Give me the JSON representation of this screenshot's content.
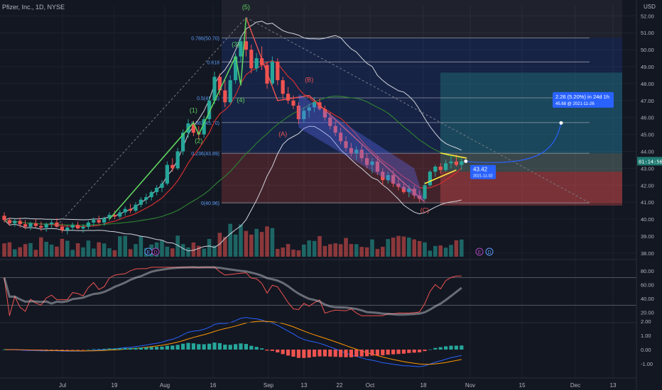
{
  "header": {
    "title": "Pfizer, Inc., 1D, NYSE",
    "currency": "USD"
  },
  "colors": {
    "bg": "#131722",
    "up": "#26a69a",
    "down": "#ef5350",
    "grid": "#1e222d",
    "axis_text": "#b2b5be",
    "fib_line": "#5b9cf6",
    "wave_green": "#5fd35f",
    "label_blue": "#2962ff",
    "price_tag": "#1f7a72"
  },
  "chart_data": {
    "type": "candlestick",
    "title": "Pfizer, Inc., 1D, NYSE",
    "x_axis": {
      "tick_labels": [
        "Jul",
        "19",
        "Aug",
        "16",
        "Sep",
        "13",
        "22",
        "Oct",
        "18",
        "Nov",
        "15",
        "Dec",
        "13"
      ]
    },
    "y_axis": {
      "range": [
        37.7,
        52.6
      ],
      "tick_labels": [
        "52.00",
        "51.00",
        "50.00",
        "49.00",
        "48.00",
        "47.00",
        "46.00",
        "45.00",
        "44.00",
        "43.00",
        "42.00",
        "41.00",
        "40.00",
        "39.00",
        "38.00"
      ]
    },
    "last_price": {
      "value": "43.42",
      "time_left": "01:14:56"
    },
    "candles": [
      {
        "o": 40.2,
        "h": 40.4,
        "l": 39.8,
        "c": 39.95
      },
      {
        "o": 39.95,
        "h": 40.1,
        "l": 39.6,
        "c": 39.75
      },
      {
        "o": 39.75,
        "h": 40.0,
        "l": 39.55,
        "c": 39.9
      },
      {
        "o": 39.9,
        "h": 40.1,
        "l": 39.5,
        "c": 39.7
      },
      {
        "o": 39.7,
        "h": 39.95,
        "l": 39.4,
        "c": 39.55
      },
      {
        "o": 39.55,
        "h": 39.85,
        "l": 39.35,
        "c": 39.75
      },
      {
        "o": 39.75,
        "h": 40.0,
        "l": 39.5,
        "c": 39.6
      },
      {
        "o": 39.6,
        "h": 39.85,
        "l": 39.3,
        "c": 39.5
      },
      {
        "o": 39.5,
        "h": 39.8,
        "l": 39.25,
        "c": 39.7
      },
      {
        "o": 39.7,
        "h": 40.0,
        "l": 39.5,
        "c": 39.8
      },
      {
        "o": 39.8,
        "h": 40.05,
        "l": 39.5,
        "c": 39.55
      },
      {
        "o": 39.55,
        "h": 39.75,
        "l": 39.2,
        "c": 39.35
      },
      {
        "o": 39.35,
        "h": 39.65,
        "l": 39.1,
        "c": 39.5
      },
      {
        "o": 39.5,
        "h": 39.8,
        "l": 39.3,
        "c": 39.65
      },
      {
        "o": 39.65,
        "h": 39.85,
        "l": 39.4,
        "c": 39.45
      },
      {
        "o": 39.45,
        "h": 39.7,
        "l": 39.2,
        "c": 39.55
      },
      {
        "o": 39.55,
        "h": 39.9,
        "l": 39.4,
        "c": 39.8
      },
      {
        "o": 39.8,
        "h": 40.1,
        "l": 39.6,
        "c": 39.95
      },
      {
        "o": 39.95,
        "h": 40.2,
        "l": 39.7,
        "c": 39.8
      },
      {
        "o": 39.8,
        "h": 40.15,
        "l": 39.6,
        "c": 40.05
      },
      {
        "o": 40.05,
        "h": 40.4,
        "l": 39.9,
        "c": 40.25
      },
      {
        "o": 40.25,
        "h": 40.5,
        "l": 40.0,
        "c": 40.15
      },
      {
        "o": 40.15,
        "h": 40.55,
        "l": 40.0,
        "c": 40.4
      },
      {
        "o": 40.4,
        "h": 40.75,
        "l": 40.2,
        "c": 40.6
      },
      {
        "o": 40.6,
        "h": 40.9,
        "l": 40.35,
        "c": 40.5
      },
      {
        "o": 40.5,
        "h": 41.0,
        "l": 40.4,
        "c": 40.85
      },
      {
        "o": 40.85,
        "h": 41.3,
        "l": 40.7,
        "c": 41.15
      },
      {
        "o": 41.15,
        "h": 41.5,
        "l": 40.9,
        "c": 41.3
      },
      {
        "o": 41.3,
        "h": 41.7,
        "l": 41.1,
        "c": 41.6
      },
      {
        "o": 41.6,
        "h": 42.0,
        "l": 41.4,
        "c": 41.85
      },
      {
        "o": 41.85,
        "h": 42.3,
        "l": 41.6,
        "c": 42.1
      },
      {
        "o": 42.1,
        "h": 43.4,
        "l": 42.0,
        "c": 43.2
      },
      {
        "o": 43.2,
        "h": 43.6,
        "l": 42.8,
        "c": 43.0
      },
      {
        "o": 43.0,
        "h": 44.2,
        "l": 42.9,
        "c": 44.0
      },
      {
        "o": 44.0,
        "h": 45.3,
        "l": 43.8,
        "c": 45.1
      },
      {
        "o": 45.1,
        "h": 45.9,
        "l": 44.8,
        "c": 45.65
      },
      {
        "o": 45.65,
        "h": 45.8,
        "l": 44.9,
        "c": 45.1
      },
      {
        "o": 45.1,
        "h": 45.5,
        "l": 44.7,
        "c": 45.0
      },
      {
        "o": 45.0,
        "h": 46.1,
        "l": 44.8,
        "c": 45.9
      },
      {
        "o": 45.9,
        "h": 47.2,
        "l": 45.7,
        "c": 47.0
      },
      {
        "o": 47.0,
        "h": 48.7,
        "l": 46.8,
        "c": 48.4
      },
      {
        "o": 48.4,
        "h": 48.6,
        "l": 47.3,
        "c": 47.6
      },
      {
        "o": 47.6,
        "h": 48.2,
        "l": 46.6,
        "c": 46.9
      },
      {
        "o": 46.9,
        "h": 48.5,
        "l": 46.8,
        "c": 48.2
      },
      {
        "o": 48.2,
        "h": 49.8,
        "l": 48.0,
        "c": 49.6
      },
      {
        "o": 49.6,
        "h": 50.8,
        "l": 49.3,
        "c": 50.5
      },
      {
        "o": 50.5,
        "h": 51.2,
        "l": 49.6,
        "c": 50.0
      },
      {
        "o": 50.0,
        "h": 50.3,
        "l": 48.6,
        "c": 48.9
      },
      {
        "o": 48.9,
        "h": 49.8,
        "l": 48.7,
        "c": 49.5
      },
      {
        "o": 49.5,
        "h": 50.2,
        "l": 48.8,
        "c": 49.1
      },
      {
        "o": 49.1,
        "h": 49.3,
        "l": 47.7,
        "c": 48.0
      },
      {
        "o": 48.0,
        "h": 49.6,
        "l": 47.9,
        "c": 49.3
      },
      {
        "o": 49.3,
        "h": 49.5,
        "l": 47.9,
        "c": 48.2
      },
      {
        "o": 48.2,
        "h": 48.4,
        "l": 47.1,
        "c": 47.4
      },
      {
        "o": 47.4,
        "h": 47.8,
        "l": 46.8,
        "c": 47.0
      },
      {
        "o": 47.0,
        "h": 47.3,
        "l": 46.5,
        "c": 46.7
      },
      {
        "o": 46.7,
        "h": 46.9,
        "l": 45.6,
        "c": 45.9
      },
      {
        "o": 45.9,
        "h": 46.6,
        "l": 45.7,
        "c": 46.4
      },
      {
        "o": 46.4,
        "h": 46.8,
        "l": 46.0,
        "c": 46.6
      },
      {
        "o": 46.6,
        "h": 47.2,
        "l": 46.3,
        "c": 46.9
      },
      {
        "o": 46.9,
        "h": 47.1,
        "l": 46.4,
        "c": 46.5
      },
      {
        "o": 46.5,
        "h": 46.7,
        "l": 45.8,
        "c": 46.0
      },
      {
        "o": 46.0,
        "h": 46.3,
        "l": 45.3,
        "c": 45.5
      },
      {
        "o": 45.5,
        "h": 45.8,
        "l": 44.9,
        "c": 45.1
      },
      {
        "o": 45.1,
        "h": 45.4,
        "l": 44.4,
        "c": 44.6
      },
      {
        "o": 44.6,
        "h": 44.9,
        "l": 44.0,
        "c": 44.2
      },
      {
        "o": 44.2,
        "h": 44.5,
        "l": 43.7,
        "c": 43.9
      },
      {
        "o": 43.9,
        "h": 44.3,
        "l": 43.5,
        "c": 44.1
      },
      {
        "o": 44.1,
        "h": 44.4,
        "l": 43.4,
        "c": 43.6
      },
      {
        "o": 43.6,
        "h": 43.9,
        "l": 43.0,
        "c": 43.2
      },
      {
        "o": 43.2,
        "h": 43.6,
        "l": 42.7,
        "c": 43.4
      },
      {
        "o": 43.4,
        "h": 43.7,
        "l": 42.6,
        "c": 42.8
      },
      {
        "o": 42.8,
        "h": 43.0,
        "l": 42.0,
        "c": 42.3
      },
      {
        "o": 42.3,
        "h": 42.8,
        "l": 42.1,
        "c": 42.6
      },
      {
        "o": 42.6,
        "h": 42.9,
        "l": 41.9,
        "c": 42.1
      },
      {
        "o": 42.1,
        "h": 42.5,
        "l": 41.7,
        "c": 41.9
      },
      {
        "o": 41.9,
        "h": 42.2,
        "l": 41.5,
        "c": 41.6
      },
      {
        "o": 41.6,
        "h": 42.0,
        "l": 41.3,
        "c": 41.8
      },
      {
        "o": 41.8,
        "h": 42.0,
        "l": 41.2,
        "c": 41.4
      },
      {
        "o": 41.4,
        "h": 41.7,
        "l": 41.0,
        "c": 41.2
      },
      {
        "o": 41.2,
        "h": 42.2,
        "l": 41.1,
        "c": 42.0
      },
      {
        "o": 42.0,
        "h": 42.9,
        "l": 41.9,
        "c": 42.8
      },
      {
        "o": 42.8,
        "h": 43.2,
        "l": 42.5,
        "c": 43.1
      },
      {
        "o": 43.1,
        "h": 43.3,
        "l": 42.7,
        "c": 42.9
      },
      {
        "o": 42.9,
        "h": 43.5,
        "l": 42.8,
        "c": 43.3
      },
      {
        "o": 43.3,
        "h": 43.7,
        "l": 43.0,
        "c": 43.4
      },
      {
        "o": 43.4,
        "h": 43.8,
        "l": 43.1,
        "c": 43.2
      },
      {
        "o": 43.2,
        "h": 43.6,
        "l": 42.9,
        "c": 43.42
      }
    ],
    "fib_levels": [
      {
        "ratio": "0.786",
        "price": 50.7,
        "label": "0.786(50.70)"
      },
      {
        "ratio": "0.618",
        "price": 49.28,
        "label": "0.618"
      },
      {
        "ratio": "0.5",
        "price": 47.16,
        "label": "0.5(47.16)"
      },
      {
        "ratio": "0.382",
        "price": 45.7,
        "label": "0.382(45.70)"
      },
      {
        "ratio": "0.236",
        "price": 43.89,
        "label": "0.236(43.89)"
      },
      {
        "ratio": "0",
        "price": 40.96,
        "label": "0(40.96)"
      }
    ],
    "wave_labels": [
      "(1)",
      "(2)",
      "(3)",
      "(4)",
      "(5)",
      "(A)",
      "(B)",
      "(C)"
    ],
    "projection": {
      "line1": "2.26 (5.20%) in 24d 1h",
      "line2": "45.68 @ 2021-11-26"
    },
    "price_marker": {
      "price": "43.42",
      "date": "2021-11-02"
    },
    "event_markers": [
      "E",
      "D",
      "E",
      "D"
    ],
    "rsi_panel": {
      "tick_labels": [
        "80.00",
        "60.00",
        "40.00",
        "20.00"
      ]
    },
    "macd_panel": {
      "tick_labels": [
        "2.00",
        "1.00",
        "0.00",
        "-1.00"
      ]
    }
  }
}
